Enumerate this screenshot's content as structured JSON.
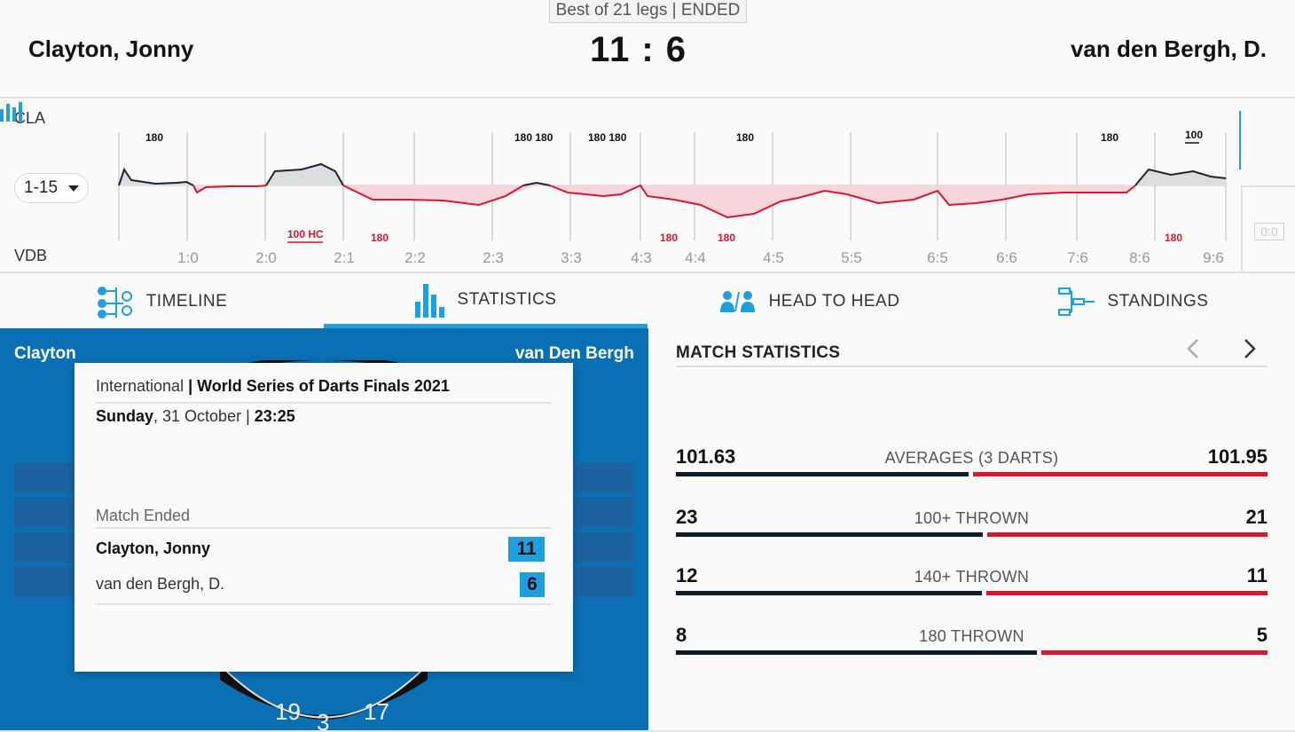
{
  "header": {
    "match_info": "Best of 21 legs | ENDED",
    "player_left": "Clayton, Jonny",
    "player_right": "van den Bergh, D.",
    "score_left": "11",
    "score_sep": ":",
    "score_right": "6"
  },
  "chart": {
    "label_top": "CLA",
    "label_bottom": "VDB",
    "range": "1-15",
    "mini_score": "0:0",
    "top_marks": [
      "180",
      "180 180",
      "180 180",
      "180",
      "180",
      "100"
    ],
    "bottom_marks": [
      "100 HC",
      "180",
      "180",
      "180",
      "180"
    ],
    "leg_scores": [
      "1:0",
      "2:0",
      "2:1",
      "2:2",
      "2:3",
      "3:3",
      "4:3",
      "4:4",
      "4:5",
      "5:5",
      "6:5",
      "6:6",
      "7:6",
      "8:6",
      "9:6"
    ]
  },
  "tabs": [
    {
      "label": "TIMELINE",
      "icon": "timeline-icon"
    },
    {
      "label": "STATISTICS",
      "icon": "statistics-icon"
    },
    {
      "label": "HEAD TO HEAD",
      "icon": "head-to-head-icon"
    },
    {
      "label": "STANDINGS",
      "icon": "standings-icon"
    }
  ],
  "board": {
    "name_left": "Clayton",
    "name_right": "van Den Bergh",
    "numbers": [
      "19",
      "3",
      "17"
    ]
  },
  "popup": {
    "category": "International",
    "separator": " | ",
    "tournament": "World Series of Darts Finals 2021",
    "day": "Sunday",
    "date": ", 31 October | ",
    "time": "23:25",
    "status": "Match Ended",
    "player1": "Clayton, Jonny",
    "player1_score": "11",
    "player2": "van den Bergh, D.",
    "player2_score": "6"
  },
  "stats": {
    "title": "MATCH STATISTICS",
    "rows": [
      {
        "left": "101.63",
        "label": "AVERAGES (3 DARTS)",
        "right": "101.95"
      },
      {
        "left": "23",
        "label": "100+ THROWN",
        "right": "21"
      },
      {
        "left": "12",
        "label": "140+ THROWN",
        "right": "11"
      },
      {
        "left": "8",
        "label": "180 THROWN",
        "right": "5"
      }
    ]
  },
  "colors": {
    "accent": "#1ea0e0",
    "panel_blue": "#0b6fb3",
    "home": "#0d1b2a",
    "away": "#d4182e"
  }
}
